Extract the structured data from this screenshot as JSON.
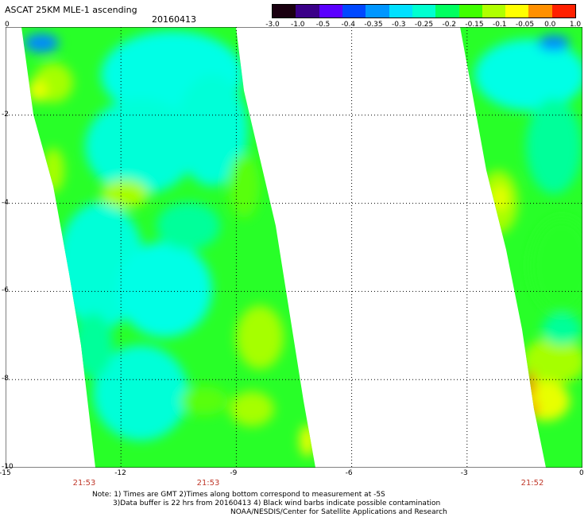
{
  "header": {
    "title": "ASCAT 25KM MLE-1 ascending",
    "date": "20160413"
  },
  "colorbar": {
    "labels": [
      "-3.0",
      "-1.0",
      "-0.5",
      "-0.4",
      "-0.35",
      "-0.3",
      "-0.25",
      "-0.2",
      "-0.15",
      "-0.1",
      "-0.05",
      "0.0",
      "1.0"
    ],
    "colors": [
      "#1a0010",
      "#3a0088",
      "#5a00ff",
      "#0048ff",
      "#0096ff",
      "#00e0ff",
      "#00ffd0",
      "#00ff60",
      "#40ff00",
      "#b0ff00",
      "#ffff00",
      "#ff9000",
      "#ff2000"
    ]
  },
  "map": {
    "lon_range": [
      -15,
      0
    ],
    "lat_range": [
      -10,
      0
    ],
    "x_ticks": [
      "-15",
      "-12",
      "-9",
      "-6",
      "-3",
      "0"
    ],
    "y_ticks": [
      "0",
      "-2",
      "-4",
      "-6",
      "-8",
      "-10"
    ],
    "grid_lines": true,
    "colors": {
      "cyan": "#00ffd8",
      "aqua": "#00ffe6",
      "mint": "#00ff9a",
      "green": "#28ff28",
      "lime": "#58ff10",
      "yellowgreen": "#a6ff00",
      "yellow": "#e8ff00",
      "orange": "#ff7000",
      "blue": "#0088ff"
    }
  },
  "time_labels": [
    "21:53",
    "21:53",
    "21:52"
  ],
  "notes": {
    "line1": "Note: 1) Times are GMT 2)Times along bottom correspond to measurement at -5S",
    "line2": "3)Data buffer is 22 hrs from 20160413 4) Black wind barbs indicate possible contamination",
    "line3": "NOAA/NESDIS/Center for Satellite Applications and Research"
  }
}
